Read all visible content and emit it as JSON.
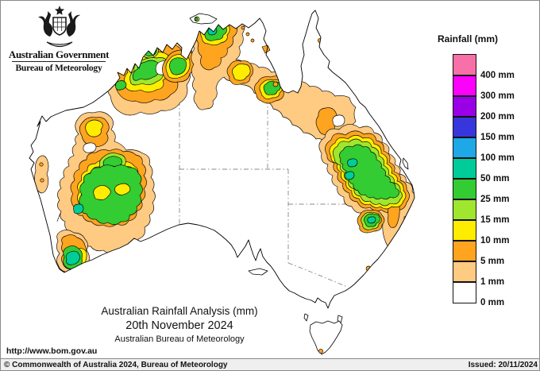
{
  "header": {
    "government": "Australian Government",
    "bureau": "Bureau of Meteorology"
  },
  "legend": {
    "title": "Rainfall (mm)",
    "entries": [
      {
        "level": 400,
        "label": "400 mm",
        "color": "#F870A8"
      },
      {
        "level": 300,
        "label": "300 mm",
        "color": "#FB02FB"
      },
      {
        "level": 200,
        "label": "200 mm",
        "color": "#9900E6"
      },
      {
        "level": 150,
        "label": "150 mm",
        "color": "#3636DC"
      },
      {
        "level": 100,
        "label": "100 mm",
        "color": "#1EA8E8"
      },
      {
        "level": 50,
        "label": "50 mm",
        "color": "#00CC99"
      },
      {
        "level": 25,
        "label": "25 mm",
        "color": "#33CC33"
      },
      {
        "level": 15,
        "label": "15 mm",
        "color": "#A0E62E"
      },
      {
        "level": 10,
        "label": "10 mm",
        "color": "#FFEC00"
      },
      {
        "level": 5,
        "label": "5 mm",
        "color": "#FFA41F"
      },
      {
        "level": 1,
        "label": "1 mm",
        "color": "#FFCA82"
      },
      {
        "level": 0,
        "label": "0 mm",
        "color": "#FFFFFF"
      }
    ]
  },
  "map": {
    "region": "Australia",
    "contour_levels_mm": [
      0,
      1,
      5,
      10,
      15,
      25,
      50,
      100,
      150,
      200,
      300,
      400
    ]
  },
  "caption": {
    "line1": "Australian Rainfall Analysis (mm)",
    "line2": "20th November 2024",
    "line3": "Australian Bureau of Meteorology"
  },
  "links": {
    "url": "http://www.bom.gov.au"
  },
  "footer": {
    "copyright": "© Commonwealth of Australia 2024, Bureau of Meteorology",
    "issued": "Issued: 20/11/2024"
  }
}
